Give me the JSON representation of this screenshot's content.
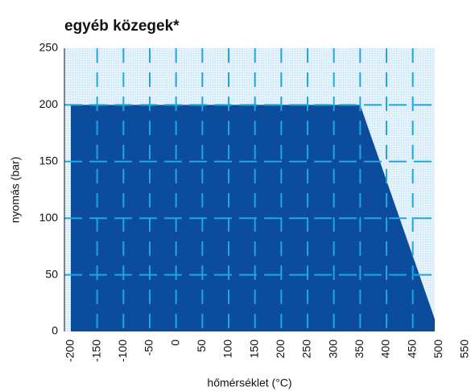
{
  "chart_data": {
    "type": "area",
    "title": "egyéb közegek*",
    "xlabel": "hőmérséklet (°C)",
    "ylabel": "nyomás (bar)",
    "x": [
      -200,
      350,
      500
    ],
    "values": [
      200,
      200,
      0
    ],
    "color": "#0b4d9c",
    "xlim": [
      -200,
      550
    ],
    "ylim": [
      0,
      250
    ],
    "xticks": [
      -200,
      -150,
      -100,
      -50,
      0,
      50,
      100,
      150,
      200,
      250,
      300,
      350,
      400,
      450,
      500,
      550
    ],
    "yticks": [
      0,
      50,
      100,
      150,
      200,
      250
    ],
    "grid": true
  }
}
